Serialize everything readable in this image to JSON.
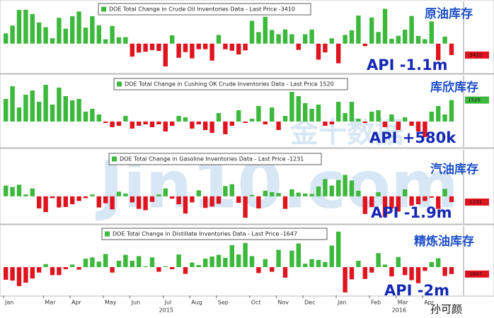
{
  "watermark": {
    "latin": "Jin10.com",
    "chinese": "金十数据"
  },
  "author": "孙可颜",
  "chart_data": [
    {
      "type": "bar",
      "series": [
        {
          "name": "DOE Total Change in Crude Oil Inventories Data - Last Price -3410",
          "values": [
            3060,
            5390,
            10070,
            10120,
            8870,
            6330,
            4910,
            1600,
            7710,
            4480,
            8190,
            9600,
            4770,
            8190,
            5480,
            1300,
            5290,
            1910,
            1940,
            -3880,
            -2670,
            -2410,
            -1920,
            -2180,
            -6800,
            2480,
            -4220,
            -2520,
            -4410,
            -1680,
            -1660,
            -5050,
            2600,
            -1680,
            -2110,
            -3230,
            -2000,
            6800,
            3460,
            8010,
            4060,
            2810,
            4230,
            2800,
            -1860,
            2810,
            4200,
            -4780,
            -2620,
            1590,
            -5870,
            2610,
            4000,
            8360,
            -750,
            7800,
            3500,
            10400,
            1450,
            2340,
            4160,
            8250,
            2300,
            1330,
            6630,
            -4940,
            2100,
            -3410
          ]
        }
      ],
      "colors": {
        "up": "#3cb93c",
        "down": "#e0141e"
      },
      "ylim": [
        -8700,
        12600
      ],
      "annotations": [
        "原油库存",
        "API -1.1m"
      ]
    },
    {
      "type": "bar",
      "series": [
        {
          "name": "DOE Total Change in Cushing OK Crude Inventories Data - Last Price 1520",
          "values": [
            1600,
            2500,
            1000,
            1900,
            2200,
            1400,
            2600,
            1200,
            2400,
            1800,
            1500,
            1600,
            700,
            900,
            500,
            -100,
            -400,
            -300,
            400,
            -500,
            -300,
            -200,
            -400,
            -200,
            -700,
            -300,
            400,
            300,
            -500,
            -200,
            -600,
            -800,
            600,
            -900,
            -300,
            800,
            -100,
            200,
            1100,
            -200,
            1000,
            -600,
            400,
            2100,
            1800,
            1300,
            900,
            1200,
            -300,
            -200,
            1400,
            600,
            1400,
            200,
            -100,
            700,
            800,
            -400,
            500,
            -600,
            300,
            -300,
            -700,
            -1100,
            700,
            1100,
            500,
            1520
          ]
        }
      ],
      "colors": {
        "up": "#3cb93c",
        "down": "#e0141e"
      },
      "ylim": [
        -1800,
        3250
      ],
      "annotations": [
        "库欣库存",
        "API +580k"
      ]
    },
    {
      "type": "bar",
      "series": [
        {
          "name": "DOE Total Change in Gasoline Inventories Data - Last Price -1231",
          "values": [
            2300,
            2000,
            2500,
            400,
            1700,
            -2600,
            -3400,
            -400,
            -2400,
            -2300,
            -1700,
            -1000,
            -400,
            400,
            -2400,
            -1500,
            -2800,
            1000,
            600,
            -1300,
            -2700,
            -3000,
            -1200,
            400,
            1700,
            -500,
            -1700,
            -3700,
            -1300,
            1300,
            -2500,
            -2200,
            -1600,
            2200,
            2600,
            -1400,
            -4600,
            300,
            -2600,
            1200,
            900,
            700,
            -2700,
            1500,
            800,
            600,
            500,
            2100,
            3700,
            2300,
            3500,
            4600,
            3400,
            1200,
            -3800,
            -2300,
            900,
            -4400,
            -2600,
            -3300,
            1500,
            -2000,
            -1700,
            -1000,
            -300,
            -2700,
            1600,
            -1231
          ]
        }
      ],
      "colors": {
        "up": "#3cb93c",
        "down": "#e0141e"
      },
      "ylim": [
        -5800,
        10000
      ],
      "annotations": [
        "汽油库存",
        "API -1.9m"
      ]
    },
    {
      "type": "bar",
      "series": [
        {
          "name": "DOE Total Change in Distillate Inventories Data - Last Price -1647",
          "values": [
            -3000,
            -3200,
            -4500,
            -3700,
            -2700,
            -1300,
            700,
            -1900,
            -1900,
            -500,
            600,
            -600,
            2000,
            2300,
            1300,
            3100,
            -1300,
            1500,
            2900,
            1500,
            2600,
            200,
            2300,
            -1100,
            200,
            -500,
            3000,
            -1600,
            1100,
            500,
            2000,
            2500,
            2900,
            2200,
            5200,
            3000,
            5700,
            2600,
            -1400,
            1900,
            -1100,
            4100,
            -2500,
            3900,
            5600,
            800,
            1900,
            1700,
            1200,
            5100,
            8400,
            -6000,
            -2900,
            1500,
            -2800,
            -1300,
            3300,
            600,
            -2200,
            2400,
            -1900,
            -3100,
            -3800,
            -900,
            1200,
            2100,
            -2100,
            -1647
          ]
        }
      ],
      "colors": {
        "up": "#3cb93c",
        "down": "#e0141e"
      },
      "ylim": [
        -6700,
        9700
      ],
      "annotations": [
        "精炼油库存",
        "API -2m"
      ],
      "categories": [
        "Jan",
        null,
        null,
        null,
        null,
        null,
        "Mar",
        null,
        null,
        null,
        "Apr",
        null,
        null,
        null,
        null,
        "May",
        null,
        null,
        null,
        "Jun",
        null,
        null,
        null,
        null,
        "Jul",
        null,
        null,
        null,
        "Aug",
        null,
        null,
        null,
        "Sep",
        null,
        null,
        null,
        null,
        "Oct",
        null,
        null,
        null,
        "Nov",
        null,
        null,
        null,
        "Dec",
        null,
        null,
        null,
        null,
        "Jan",
        null,
        null,
        null,
        null,
        "Feb",
        null,
        null,
        null,
        "Mar",
        null,
        null,
        null,
        "Apr",
        null,
        null,
        null,
        null
      ],
      "years": [
        null,
        null,
        null,
        null,
        null,
        null,
        null,
        null,
        null,
        null,
        null,
        null,
        null,
        null,
        null,
        null,
        null,
        null,
        null,
        null,
        null,
        null,
        null,
        null,
        "2015",
        null,
        null,
        null,
        null,
        null,
        null,
        null,
        null,
        null,
        null,
        null,
        null,
        null,
        null,
        null,
        null,
        null,
        null,
        null,
        null,
        null,
        null,
        null,
        null,
        null,
        null,
        null,
        null,
        null,
        null,
        null,
        null,
        null,
        null,
        "2016",
        null,
        null,
        null,
        null,
        null,
        null,
        null,
        null
      ]
    }
  ]
}
